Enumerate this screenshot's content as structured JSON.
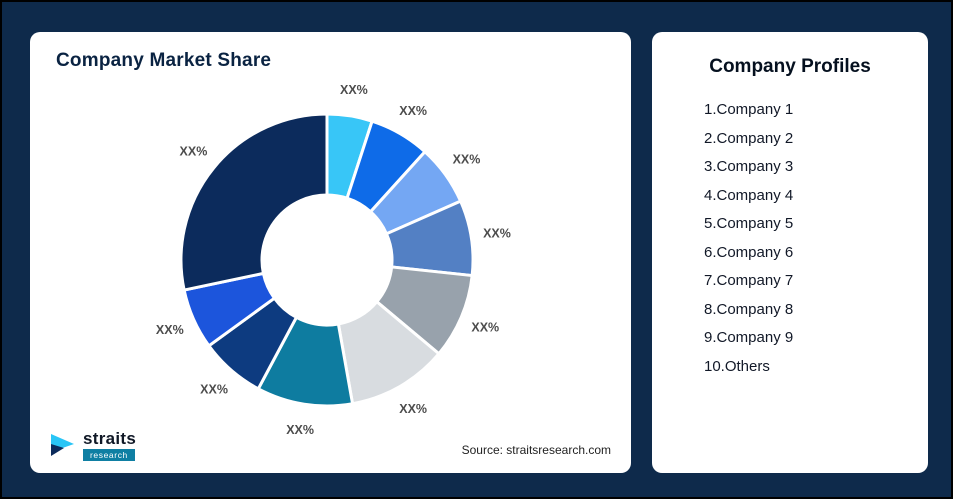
{
  "page": {
    "background": "#0E2A4B"
  },
  "left_card": {
    "title": "Company Market Share",
    "source": "Source: straitsresearch.com",
    "logo": {
      "name": "straits",
      "sub": "research",
      "icon": "straits-arrow-icon",
      "icon_colors": [
        "#29C5F6",
        "#0C2B5C"
      ]
    }
  },
  "right_card": {
    "title": "Company Profiles",
    "items": [
      "1.Company 1",
      "2.Company 2",
      "3.Company 3",
      "4.Company 4",
      "5.Company 5",
      "6.Company 6",
      "7.Company 7",
      "8.Company 8",
      "9.Company 9",
      "10.Others"
    ]
  },
  "chart_data": {
    "type": "pie",
    "subtype": "donut",
    "title": "Company Market Share",
    "data_labels": "all segments labeled XX% (placeholder percentages)",
    "legend_position": "separate right card (Company Profiles list)",
    "start_angle_deg": 0,
    "direction": "clockwise",
    "inner_radius_ratio": 0.45,
    "segments": [
      {
        "name": "Company 1",
        "label": "XX%",
        "value": 5.0,
        "color": "#38C6F7"
      },
      {
        "name": "Company 2",
        "label": "XX%",
        "value": 6.7,
        "color": "#0E6BE8"
      },
      {
        "name": "Company 3",
        "label": "XX%",
        "value": 6.7,
        "color": "#74A7F3"
      },
      {
        "name": "Company 4",
        "label": "XX%",
        "value": 8.3,
        "color": "#5380C4"
      },
      {
        "name": "Company 5",
        "label": "XX%",
        "value": 9.4,
        "color": "#98A2AC"
      },
      {
        "name": "Company 6",
        "label": "XX%",
        "value": 11.1,
        "color": "#D8DCE0"
      },
      {
        "name": "Company 7",
        "label": "XX%",
        "value": 10.6,
        "color": "#0E7CA0"
      },
      {
        "name": "Company 8",
        "label": "XX%",
        "value": 7.2,
        "color": "#0D3B80"
      },
      {
        "name": "Company 9",
        "label": "XX%",
        "value": 6.7,
        "color": "#1C55DC"
      },
      {
        "name": "Others",
        "label": "XX%",
        "value": 28.3,
        "color": "#0C2B5C"
      }
    ]
  }
}
